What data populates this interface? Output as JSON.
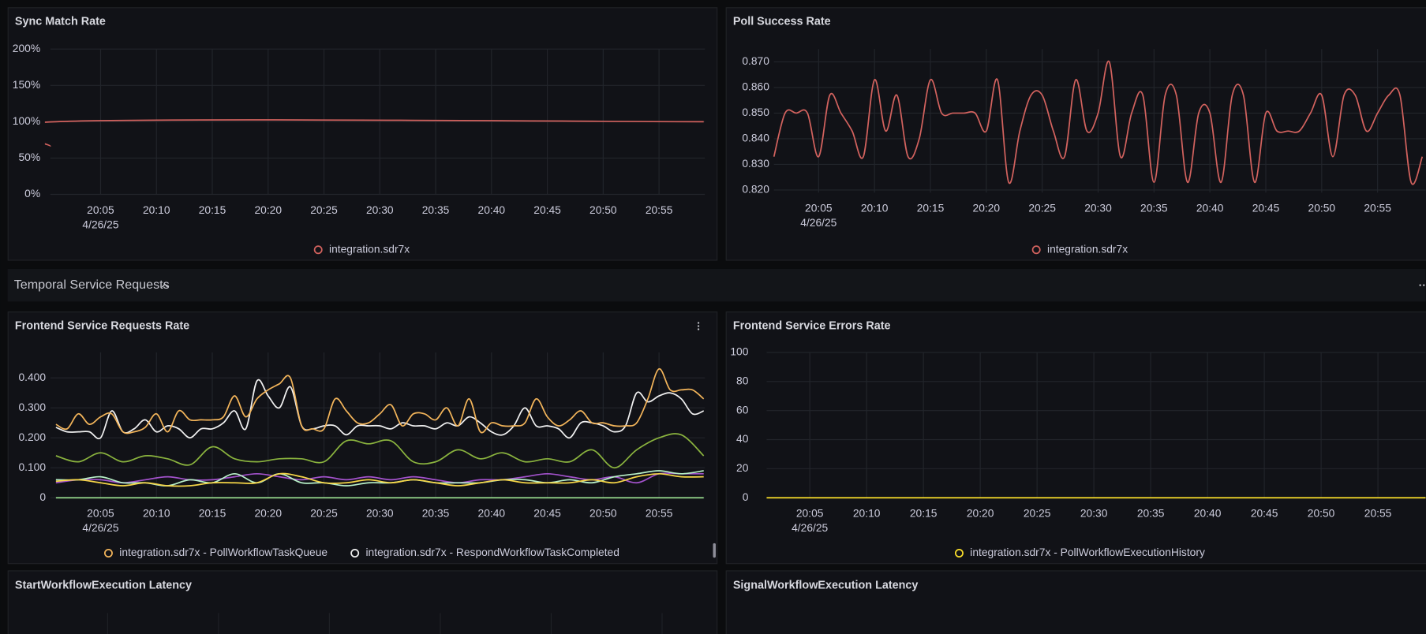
{
  "chart_data": [
    {
      "type": "line",
      "title": "Sync Match Rate",
      "grid": true,
      "legend": "bottom",
      "xlim": [
        0.5,
        59.1
      ],
      "xticks": [
        {
          "value": 5,
          "label": "20:05"
        },
        {
          "value": 10,
          "label": "20:10"
        },
        {
          "value": 15,
          "label": "20:15"
        },
        {
          "value": 20,
          "label": "20:20"
        },
        {
          "value": 25,
          "label": "20:25"
        },
        {
          "value": 30,
          "label": "20:30"
        },
        {
          "value": 35,
          "label": "20:35"
        },
        {
          "value": 40,
          "label": "20:40"
        },
        {
          "value": 45,
          "label": "20:45"
        },
        {
          "value": 50,
          "label": "20:50"
        },
        {
          "value": 55,
          "label": "20:55"
        }
      ],
      "x_date_label": "4/26/25",
      "ylim": [
        0,
        200
      ],
      "yticks": [
        {
          "value": 0,
          "label": "0%"
        },
        {
          "value": 50,
          "label": "50%"
        },
        {
          "value": 100,
          "label": "100%"
        },
        {
          "value": 150,
          "label": "150%"
        },
        {
          "value": 200,
          "label": "200%"
        }
      ],
      "series": [
        {
          "name": "integration.sdr7x",
          "color": "#d2625e",
          "x": [
            0.5,
            1,
            59
          ],
          "values": [
            66,
            100,
            100
          ]
        }
      ]
    },
    {
      "type": "line",
      "title": "Poll Success Rate",
      "grid": true,
      "legend": "bottom",
      "xlim": [
        1,
        59.3
      ],
      "xticks": [
        {
          "value": 5,
          "label": "20:05"
        },
        {
          "value": 10,
          "label": "20:10"
        },
        {
          "value": 15,
          "label": "20:15"
        },
        {
          "value": 20,
          "label": "20:20"
        },
        {
          "value": 25,
          "label": "20:25"
        },
        {
          "value": 30,
          "label": "20:30"
        },
        {
          "value": 35,
          "label": "20:35"
        },
        {
          "value": 40,
          "label": "20:40"
        },
        {
          "value": 45,
          "label": "20:45"
        },
        {
          "value": 50,
          "label": "20:50"
        },
        {
          "value": 55,
          "label": "20:55"
        }
      ],
      "x_date_label": "4/26/25",
      "ylim": [
        0.819,
        0.875
      ],
      "yticks": [
        {
          "value": 0.82,
          "label": "0.820"
        },
        {
          "value": 0.83,
          "label": "0.830"
        },
        {
          "value": 0.84,
          "label": "0.840"
        },
        {
          "value": 0.85,
          "label": "0.850"
        },
        {
          "value": 0.86,
          "label": "0.860"
        },
        {
          "value": 0.87,
          "label": "0.870"
        }
      ],
      "series": [
        {
          "name": "integration.sdr7x",
          "color": "#d2625e",
          "x": [
            1,
            2,
            3,
            4,
            5,
            6,
            7,
            8,
            9,
            10,
            11,
            12,
            13,
            14,
            15,
            16,
            17,
            18,
            19,
            20,
            21,
            22,
            23,
            24,
            25,
            26,
            27,
            28,
            29,
            30,
            31,
            32,
            33,
            34,
            35,
            36,
            37,
            38,
            39,
            40,
            41,
            42,
            43,
            44,
            45,
            46,
            47,
            48,
            49,
            50,
            51,
            52,
            53,
            54,
            55,
            56,
            57,
            58,
            59
          ],
          "values": [
            0.833,
            0.85,
            0.85,
            0.85,
            0.833,
            0.857,
            0.85,
            0.843,
            0.833,
            0.863,
            0.843,
            0.857,
            0.833,
            0.84,
            0.863,
            0.85,
            0.85,
            0.85,
            0.85,
            0.843,
            0.863,
            0.823,
            0.843,
            0.857,
            0.857,
            0.843,
            0.833,
            0.863,
            0.843,
            0.85,
            0.87,
            0.833,
            0.85,
            0.857,
            0.823,
            0.857,
            0.857,
            0.823,
            0.85,
            0.85,
            0.823,
            0.857,
            0.857,
            0.823,
            0.85,
            0.843,
            0.843,
            0.843,
            0.85,
            0.857,
            0.833,
            0.857,
            0.857,
            0.843,
            0.85,
            0.857,
            0.857,
            0.823,
            0.833
          ]
        }
      ]
    },
    {
      "type": "line",
      "title": "Frontend Service Requests Rate",
      "grid": true,
      "legend": "bottom",
      "xlim": [
        0.5,
        59.1
      ],
      "xticks": [
        {
          "value": 5,
          "label": "20:05"
        },
        {
          "value": 10,
          "label": "20:10"
        },
        {
          "value": 15,
          "label": "20:15"
        },
        {
          "value": 20,
          "label": "20:20"
        },
        {
          "value": 25,
          "label": "20:25"
        },
        {
          "value": 30,
          "label": "20:30"
        },
        {
          "value": 35,
          "label": "20:35"
        },
        {
          "value": 40,
          "label": "20:40"
        },
        {
          "value": 45,
          "label": "20:45"
        },
        {
          "value": 50,
          "label": "20:50"
        },
        {
          "value": 55,
          "label": "20:55"
        }
      ],
      "x_date_label": "4/26/25",
      "ylim": [
        0,
        0.485
      ],
      "yticks": [
        0,
        {
          "value": 0.1,
          "label": "0.100"
        },
        {
          "value": 0.2,
          "label": "0.200"
        },
        {
          "value": 0.3,
          "label": "0.300"
        },
        {
          "value": 0.4,
          "label": "0.400"
        }
      ],
      "series": [
        {
          "color": "#96d98d",
          "x": [
            1,
            59
          ],
          "values": [
            0,
            0
          ]
        },
        {
          "color": "#a352cc",
          "x": [
            1,
            3,
            5,
            7,
            9,
            11,
            13,
            15,
            17,
            19,
            21,
            23,
            25,
            27,
            29,
            31,
            33,
            35,
            37,
            39,
            41,
            43,
            45,
            47,
            49,
            51,
            53,
            55,
            57,
            59
          ],
          "values": [
            0.05,
            0.06,
            0.06,
            0.05,
            0.06,
            0.07,
            0.06,
            0.06,
            0.07,
            0.08,
            0.07,
            0.06,
            0.07,
            0.06,
            0.07,
            0.06,
            0.07,
            0.06,
            0.05,
            0.06,
            0.06,
            0.07,
            0.08,
            0.07,
            0.06,
            0.07,
            0.05,
            0.08,
            0.08,
            0.08
          ]
        },
        {
          "color": "#b8f0c8",
          "x": [
            1,
            3,
            5,
            7,
            9,
            11,
            13,
            15,
            17,
            19,
            21,
            23,
            25,
            27,
            29,
            31,
            33,
            35,
            37,
            39,
            41,
            43,
            45,
            47,
            49,
            51,
            53,
            55,
            57,
            59
          ],
          "values": [
            0.06,
            0.06,
            0.07,
            0.05,
            0.05,
            0.04,
            0.06,
            0.05,
            0.08,
            0.05,
            0.08,
            0.05,
            0.05,
            0.04,
            0.05,
            0.05,
            0.06,
            0.05,
            0.05,
            0.05,
            0.06,
            0.06,
            0.05,
            0.06,
            0.05,
            0.07,
            0.08,
            0.09,
            0.08,
            0.09
          ]
        },
        {
          "color": "#f5d547",
          "x": [
            1,
            3,
            5,
            7,
            9,
            11,
            13,
            15,
            17,
            19,
            21,
            23,
            25,
            27,
            29,
            31,
            33,
            35,
            37,
            39,
            41,
            43,
            45,
            47,
            49,
            51,
            53,
            55,
            57,
            59
          ],
          "values": [
            0.055,
            0.06,
            0.05,
            0.04,
            0.05,
            0.04,
            0.04,
            0.05,
            0.05,
            0.05,
            0.08,
            0.07,
            0.05,
            0.05,
            0.06,
            0.05,
            0.06,
            0.05,
            0.04,
            0.05,
            0.06,
            0.05,
            0.05,
            0.05,
            0.06,
            0.05,
            0.07,
            0.08,
            0.07,
            0.07
          ]
        },
        {
          "color": "#8ab33e",
          "x": [
            1,
            3,
            5,
            7,
            9,
            11,
            13,
            15,
            17,
            19,
            21,
            23,
            25,
            27,
            29,
            31,
            33,
            35,
            37,
            39,
            41,
            43,
            45,
            47,
            49,
            51,
            53,
            55,
            57,
            59
          ],
          "values": [
            0.14,
            0.12,
            0.15,
            0.12,
            0.14,
            0.13,
            0.11,
            0.17,
            0.13,
            0.12,
            0.13,
            0.13,
            0.12,
            0.19,
            0.18,
            0.19,
            0.12,
            0.12,
            0.16,
            0.13,
            0.15,
            0.12,
            0.13,
            0.12,
            0.16,
            0.1,
            0.16,
            0.2,
            0.21,
            0.14
          ]
        },
        {
          "name": "integration.sdr7x - RespondWorkflowTaskCompleted",
          "color": "#f0f0f0",
          "x": [
            1,
            2,
            3,
            4,
            5,
            6,
            7,
            8,
            9,
            10,
            11,
            12,
            13,
            14,
            15,
            16,
            17,
            18,
            19,
            20,
            21,
            22,
            23,
            24,
            25,
            26,
            27,
            28,
            29,
            30,
            31,
            32,
            33,
            34,
            35,
            36,
            37,
            38,
            39,
            40,
            41,
            42,
            43,
            44,
            45,
            46,
            47,
            48,
            49,
            50,
            51,
            52,
            53,
            54,
            55,
            56,
            57,
            58,
            59
          ],
          "values": [
            0.235,
            0.22,
            0.22,
            0.22,
            0.2,
            0.29,
            0.22,
            0.23,
            0.26,
            0.22,
            0.24,
            0.23,
            0.2,
            0.23,
            0.23,
            0.25,
            0.29,
            0.23,
            0.39,
            0.34,
            0.3,
            0.37,
            0.24,
            0.23,
            0.24,
            0.24,
            0.21,
            0.24,
            0.24,
            0.24,
            0.23,
            0.25,
            0.24,
            0.24,
            0.23,
            0.25,
            0.24,
            0.27,
            0.25,
            0.22,
            0.21,
            0.24,
            0.3,
            0.24,
            0.24,
            0.23,
            0.2,
            0.25,
            0.25,
            0.24,
            0.22,
            0.24,
            0.35,
            0.32,
            0.34,
            0.35,
            0.33,
            0.28,
            0.29
          ]
        },
        {
          "name": "integration.sdr7x - PollWorkflowTaskQueue",
          "color": "#f2b45a",
          "x": [
            1,
            2,
            3,
            4,
            5,
            6,
            7,
            8,
            9,
            10,
            11,
            12,
            13,
            14,
            15,
            16,
            17,
            18,
            19,
            20,
            21,
            22,
            23,
            24,
            25,
            26,
            27,
            28,
            29,
            30,
            31,
            32,
            33,
            34,
            35,
            36,
            37,
            38,
            39,
            40,
            41,
            42,
            43,
            44,
            45,
            46,
            47,
            48,
            49,
            50,
            51,
            52,
            53,
            54,
            55,
            56,
            57,
            58,
            59
          ],
          "values": [
            0.245,
            0.23,
            0.28,
            0.245,
            0.27,
            0.28,
            0.22,
            0.22,
            0.235,
            0.28,
            0.22,
            0.29,
            0.26,
            0.26,
            0.26,
            0.27,
            0.34,
            0.27,
            0.33,
            0.36,
            0.38,
            0.4,
            0.24,
            0.23,
            0.23,
            0.33,
            0.29,
            0.25,
            0.25,
            0.28,
            0.31,
            0.24,
            0.28,
            0.28,
            0.26,
            0.3,
            0.24,
            0.33,
            0.22,
            0.25,
            0.24,
            0.24,
            0.25,
            0.33,
            0.27,
            0.24,
            0.26,
            0.29,
            0.25,
            0.25,
            0.24,
            0.24,
            0.25,
            0.33,
            0.43,
            0.36,
            0.36,
            0.36,
            0.33
          ]
        }
      ],
      "legend_order": [
        6,
        5
      ]
    },
    {
      "type": "line",
      "title": "Frontend Service Errors Rate",
      "grid": true,
      "legend": "bottom",
      "xlim": [
        1.2,
        59.2
      ],
      "xticks": [
        {
          "value": 5,
          "label": "20:05"
        },
        {
          "value": 10,
          "label": "20:10"
        },
        {
          "value": 15,
          "label": "20:15"
        },
        {
          "value": 20,
          "label": "20:20"
        },
        {
          "value": 25,
          "label": "20:25"
        },
        {
          "value": 30,
          "label": "20:30"
        },
        {
          "value": 35,
          "label": "20:35"
        },
        {
          "value": 40,
          "label": "20:40"
        },
        {
          "value": 45,
          "label": "20:45"
        },
        {
          "value": 50,
          "label": "20:50"
        },
        {
          "value": 55,
          "label": "20:55"
        }
      ],
      "x_date_label": "4/26/25",
      "ylim": [
        0,
        100
      ],
      "yticks": [
        0,
        20,
        40,
        60,
        80,
        100
      ],
      "series": [
        {
          "name": "integration.sdr7x - PollWorkflowExecutionHistory",
          "color": "#fade2a",
          "x": [
            1.2,
            59.2
          ],
          "values": [
            0,
            0
          ]
        }
      ]
    }
  ],
  "section": {
    "title": "Temporal Service Requests"
  },
  "panels": [
    {
      "title": "StartWorkflowExecution Latency"
    },
    {
      "title": "SignalWorkflowExecution Latency"
    }
  ]
}
